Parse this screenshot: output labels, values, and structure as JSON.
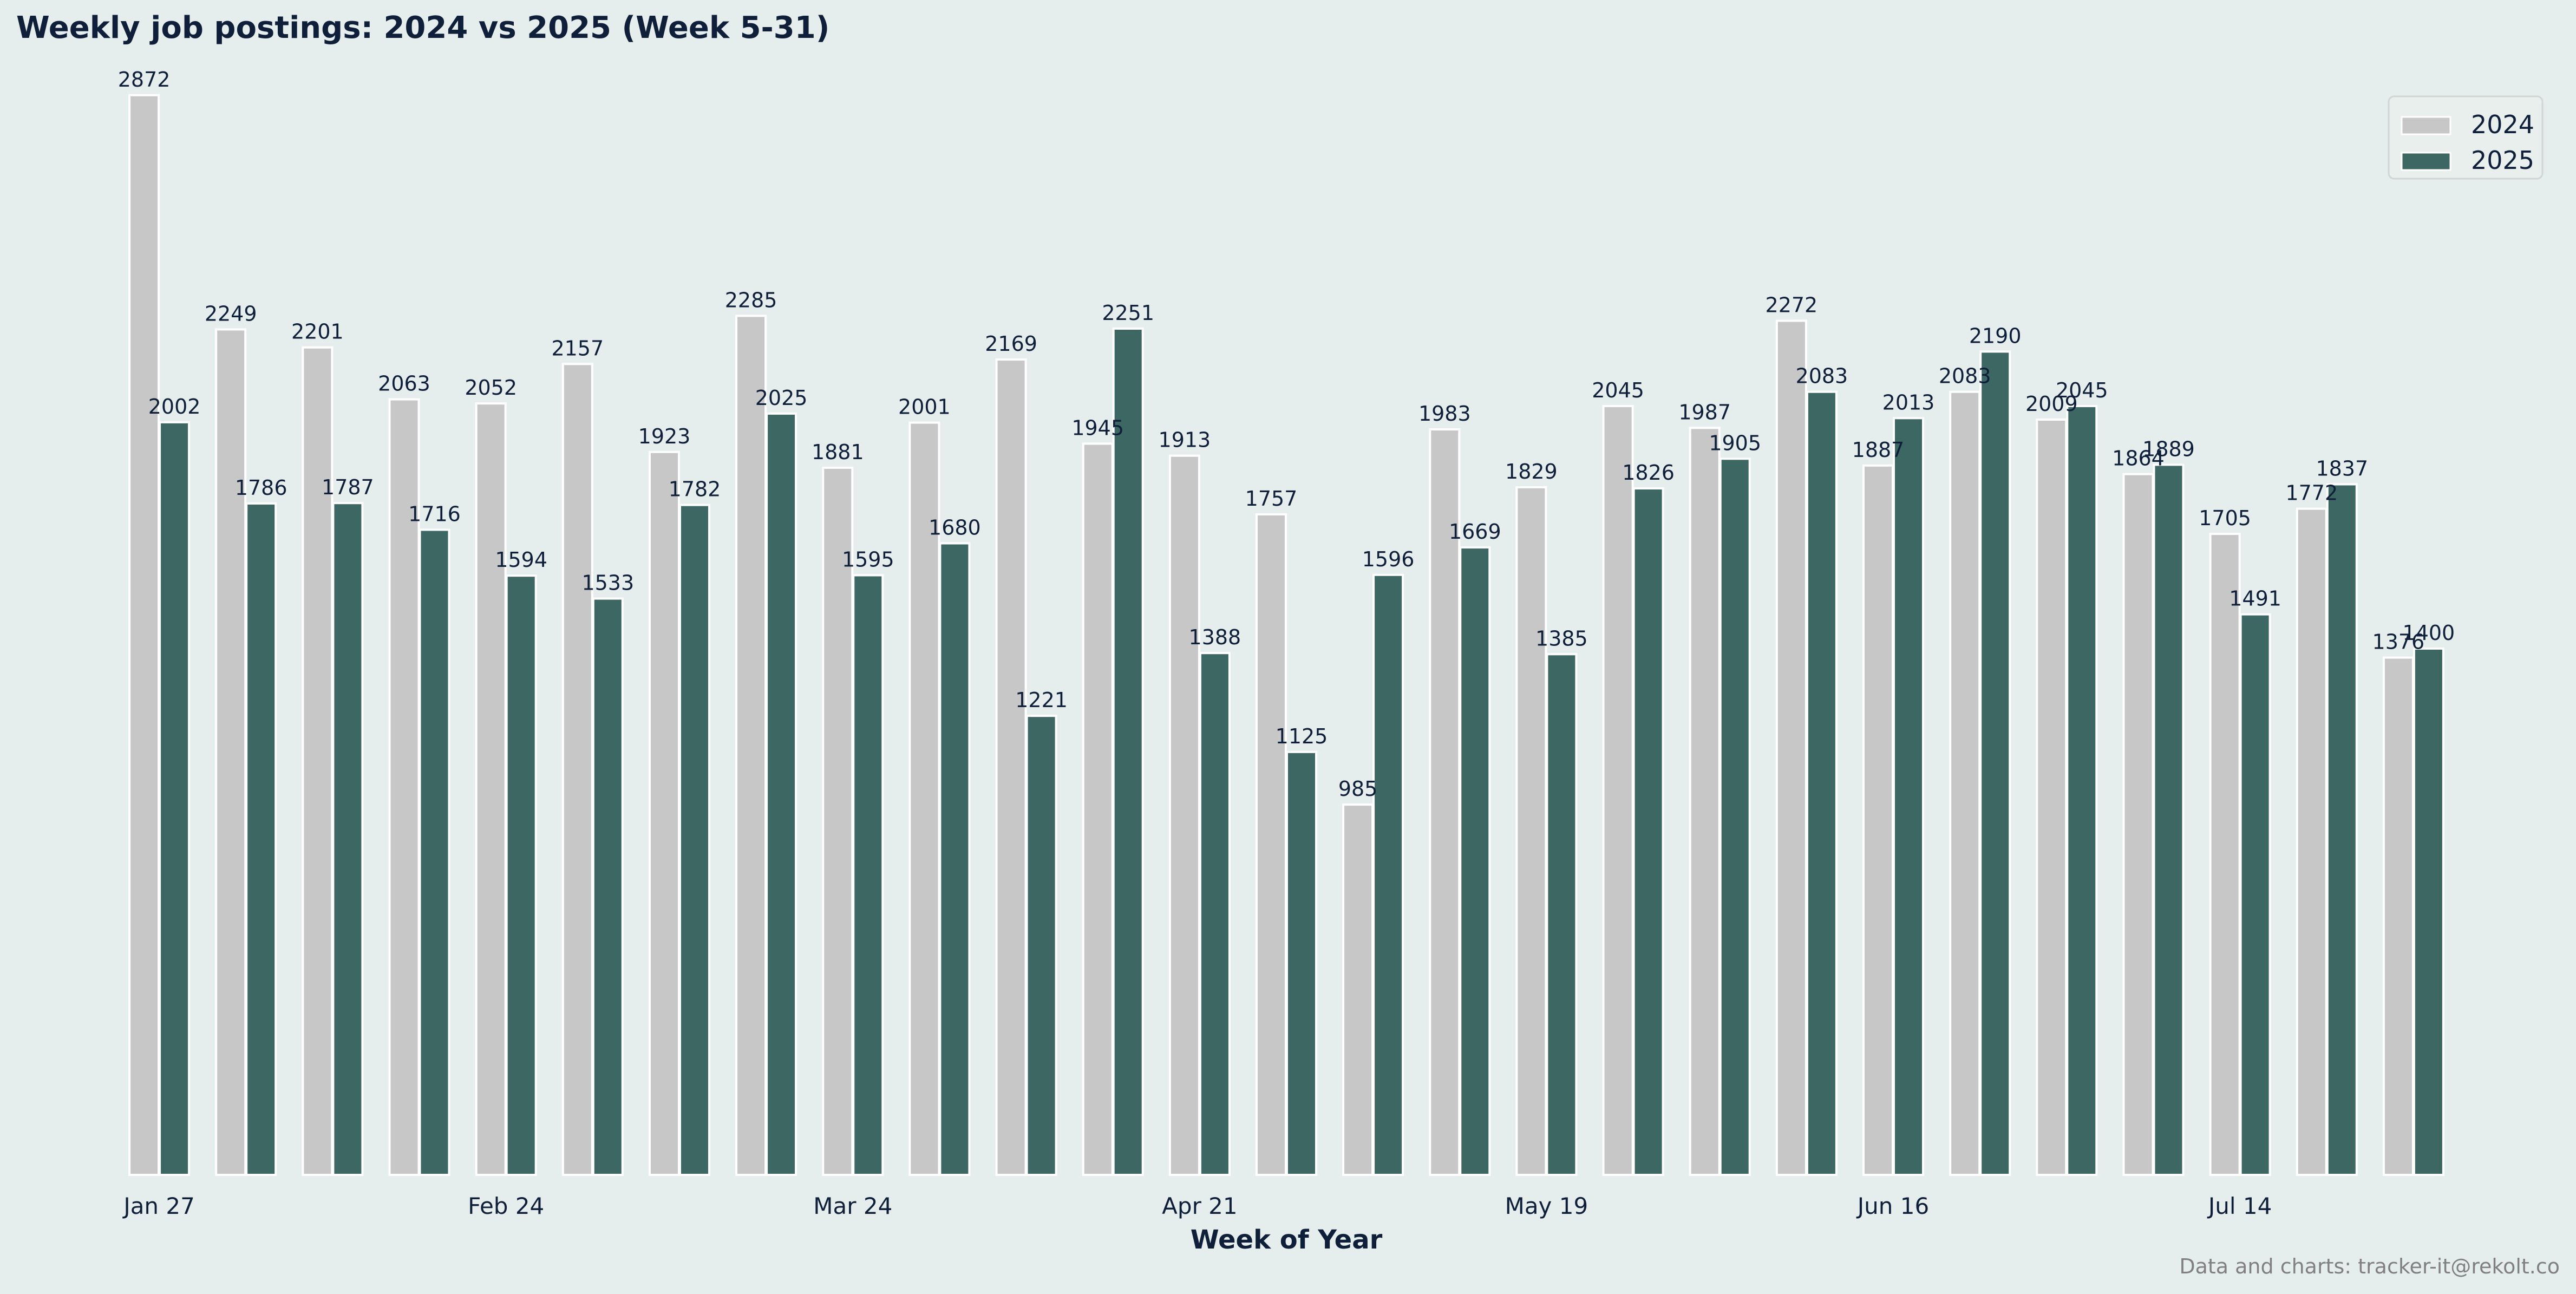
{
  "chart_data": {
    "type": "bar",
    "title": "Weekly job postings: 2024 vs 2025 (Week 5-31)",
    "xlabel": "Week of Year",
    "ylabel": "",
    "tick_labels": [
      "Jan 27",
      "Feb 24",
      "Mar 24",
      "Apr 21",
      "May 19",
      "Jun 16",
      "Jul 14"
    ],
    "tick_every": 4,
    "ylim": [
      0,
      3010
    ],
    "legend_position": "top-right",
    "series": [
      {
        "name": "2024",
        "color": "#c6c7c6",
        "values": [
          2872,
          2249,
          2201,
          2063,
          2052,
          2157,
          1923,
          2285,
          1881,
          2001,
          2169,
          1945,
          1913,
          1757,
          985,
          1983,
          1829,
          2045,
          1987,
          2272,
          1887,
          2083,
          2009,
          1864,
          1705,
          1772,
          1376
        ]
      },
      {
        "name": "2025",
        "color": "#3d6762",
        "values": [
          2002,
          1786,
          1787,
          1716,
          1594,
          1533,
          1782,
          2025,
          1595,
          1680,
          1221,
          2251,
          1388,
          1125,
          1596,
          1669,
          1385,
          1826,
          1905,
          2083,
          2013,
          2190,
          2045,
          1889,
          1491,
          1837,
          1400
        ]
      }
    ]
  },
  "footer": {
    "credit": "Data and charts: tracker-it@rekolt.co"
  }
}
